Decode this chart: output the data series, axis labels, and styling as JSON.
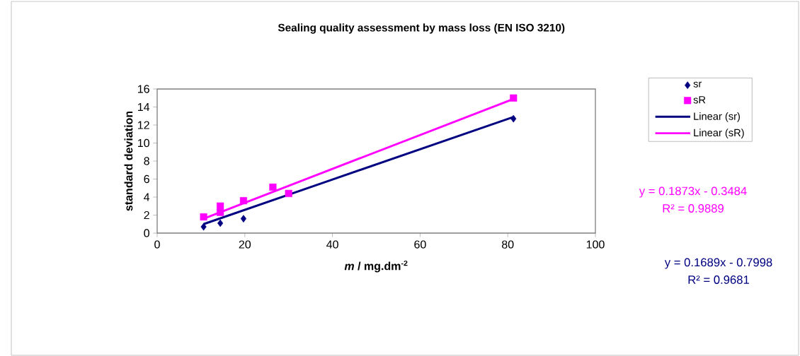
{
  "chart_data": {
    "type": "scatter",
    "title": "Sealing quality assessment by mass loss (EN ISO 3210)",
    "xlabel": "*m* / mg.dm$^{-2}$",
    "ylabel": "standard deviation",
    "xlim": [
      0,
      100
    ],
    "ylim": [
      0,
      16
    ],
    "xticks": [
      0,
      20,
      40,
      60,
      80,
      100
    ],
    "yticks": [
      0,
      2,
      4,
      6,
      8,
      10,
      12,
      14,
      16
    ],
    "grid": false,
    "legend": "right",
    "series": [
      {
        "name": "sr",
        "marker": "diamond",
        "color": "#000080",
        "x": [
          10.6,
          14.4,
          19.7,
          30.0,
          81.3
        ],
        "values": [
          0.7,
          1.1,
          1.6,
          null,
          12.7
        ]
      },
      {
        "name": "sR",
        "marker": "square",
        "color": "#ff00ff",
        "x": [
          10.6,
          14.4,
          14.4,
          19.7,
          26.4,
          30.0,
          81.3
        ],
        "values": [
          1.8,
          2.3,
          3.0,
          3.6,
          5.1,
          4.4,
          15.0
        ]
      },
      {
        "name": "Linear (sr)",
        "type": "line",
        "marker": "none",
        "color": "#000080",
        "x": [
          10.6,
          81.3
        ],
        "values": [
          1.0,
          12.9
        ]
      },
      {
        "name": "Linear (sR)",
        "type": "line",
        "marker": "none",
        "color": "#ff00ff",
        "x": [
          10.6,
          81.3
        ],
        "values": [
          1.6,
          14.9
        ]
      }
    ],
    "annotations": [
      "y = 0.1873x - 0.3484",
      "R² = 0.9889",
      "y = 0.1689x - 0.7998",
      "R² = 0.9681"
    ]
  }
}
